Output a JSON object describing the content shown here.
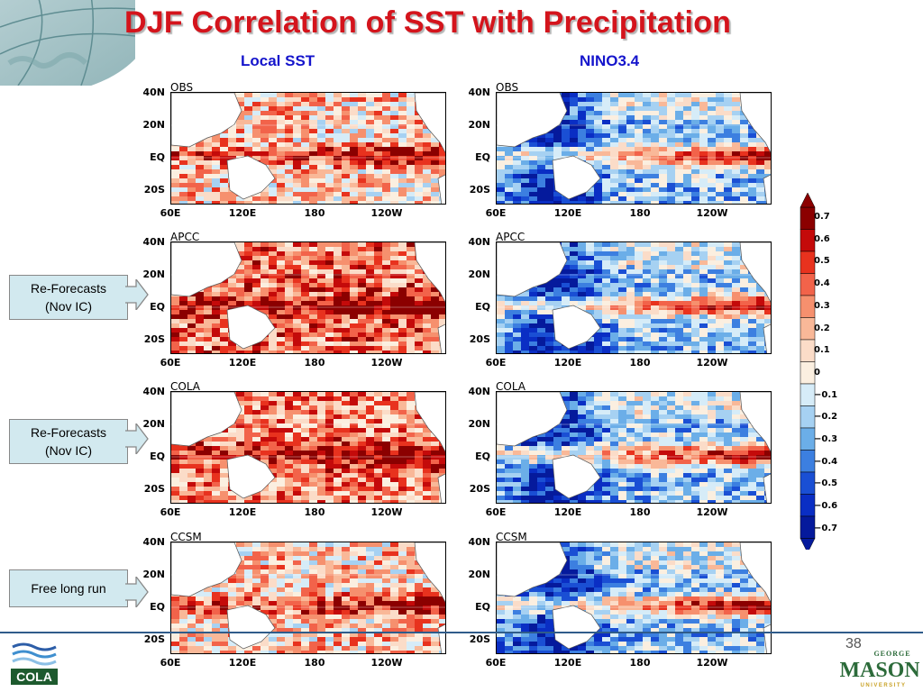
{
  "slide": {
    "title": "DJF Correlation of SST with Precipitation",
    "column_headers": [
      "Local SST",
      "NINO3.4"
    ],
    "page_number": "38"
  },
  "panels": {
    "row_labels": [
      "OBS",
      "APCC",
      "COLA",
      "CCSM"
    ],
    "y_ticks": [
      "40N",
      "20N",
      "EQ",
      "20S"
    ],
    "x_ticks": [
      "60E",
      "120E",
      "180",
      "120W"
    ]
  },
  "side_boxes": [
    {
      "line1": "Re-Forecasts",
      "line2": "(Nov IC)"
    },
    {
      "line1": "Re-Forecasts",
      "line2": "(Nov IC)"
    },
    {
      "line1": "Free long run",
      "line2": ""
    }
  ],
  "colorbar": {
    "labels": [
      "0.7",
      "0.6",
      "0.5",
      "0.4",
      "0.3",
      "0.2",
      "0.1",
      "0",
      "−0.1",
      "−0.2",
      "−0.3",
      "−0.4",
      "−0.5",
      "−0.6",
      "−0.7"
    ],
    "colors": [
      "#8b0000",
      "#c40a0a",
      "#e8321e",
      "#f2634a",
      "#f6906e",
      "#f9b898",
      "#fbdcc8",
      "#fbefe0",
      "#d6ecf8",
      "#a6d1f2",
      "#6baee8",
      "#3c7fe0",
      "#1a4fd4",
      "#0a2ec4",
      "#051a9c"
    ]
  },
  "logos": {
    "left": "COLA",
    "right_top": "GEORGE",
    "right_main": "MASON",
    "right_bottom": "UNIVERSITY"
  }
}
